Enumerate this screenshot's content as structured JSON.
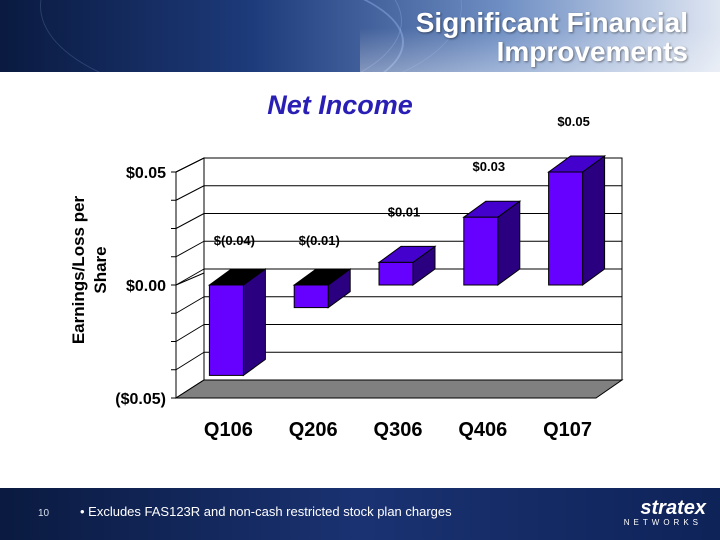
{
  "slide": {
    "title_line1": "Significant Financial",
    "title_line2": "Improvements",
    "page_number": "10",
    "footnote": "• Excludes FAS123R and non-cash restricted stock plan charges",
    "logo_word": "stratex",
    "logo_sub": "NETWORKS"
  },
  "colors": {
    "bar_front": "#6600ff",
    "bar_side": "#2a0080",
    "bar_top": "#4400cc",
    "chart_title": "#2a1fb5",
    "floor": "#808080"
  },
  "chart_data": {
    "type": "bar",
    "title": "Net Income",
    "ylabel": "Earnings/Loss per Share",
    "xlabel": "",
    "categories": [
      "Q106",
      "Q206",
      "Q306",
      "Q406",
      "Q107"
    ],
    "values": [
      -0.04,
      -0.01,
      0.01,
      0.03,
      0.05
    ],
    "data_labels": [
      "$(0.04)",
      "$(0.01)",
      "$0.01",
      "$0.03",
      "$0.05"
    ],
    "ylim": [
      -0.05,
      0.05
    ],
    "yticks": [
      {
        "value": 0.05,
        "label": "$0.05"
      },
      {
        "value": 0.0,
        "label": "$0.00"
      },
      {
        "value": -0.05,
        "label": "($0.05)"
      }
    ],
    "gridlines": [
      -0.05,
      -0.0375,
      -0.025,
      -0.0125,
      0.0,
      0.0125,
      0.025,
      0.0375,
      0.05
    ],
    "grid": true,
    "legend": "none",
    "style": "3d"
  }
}
